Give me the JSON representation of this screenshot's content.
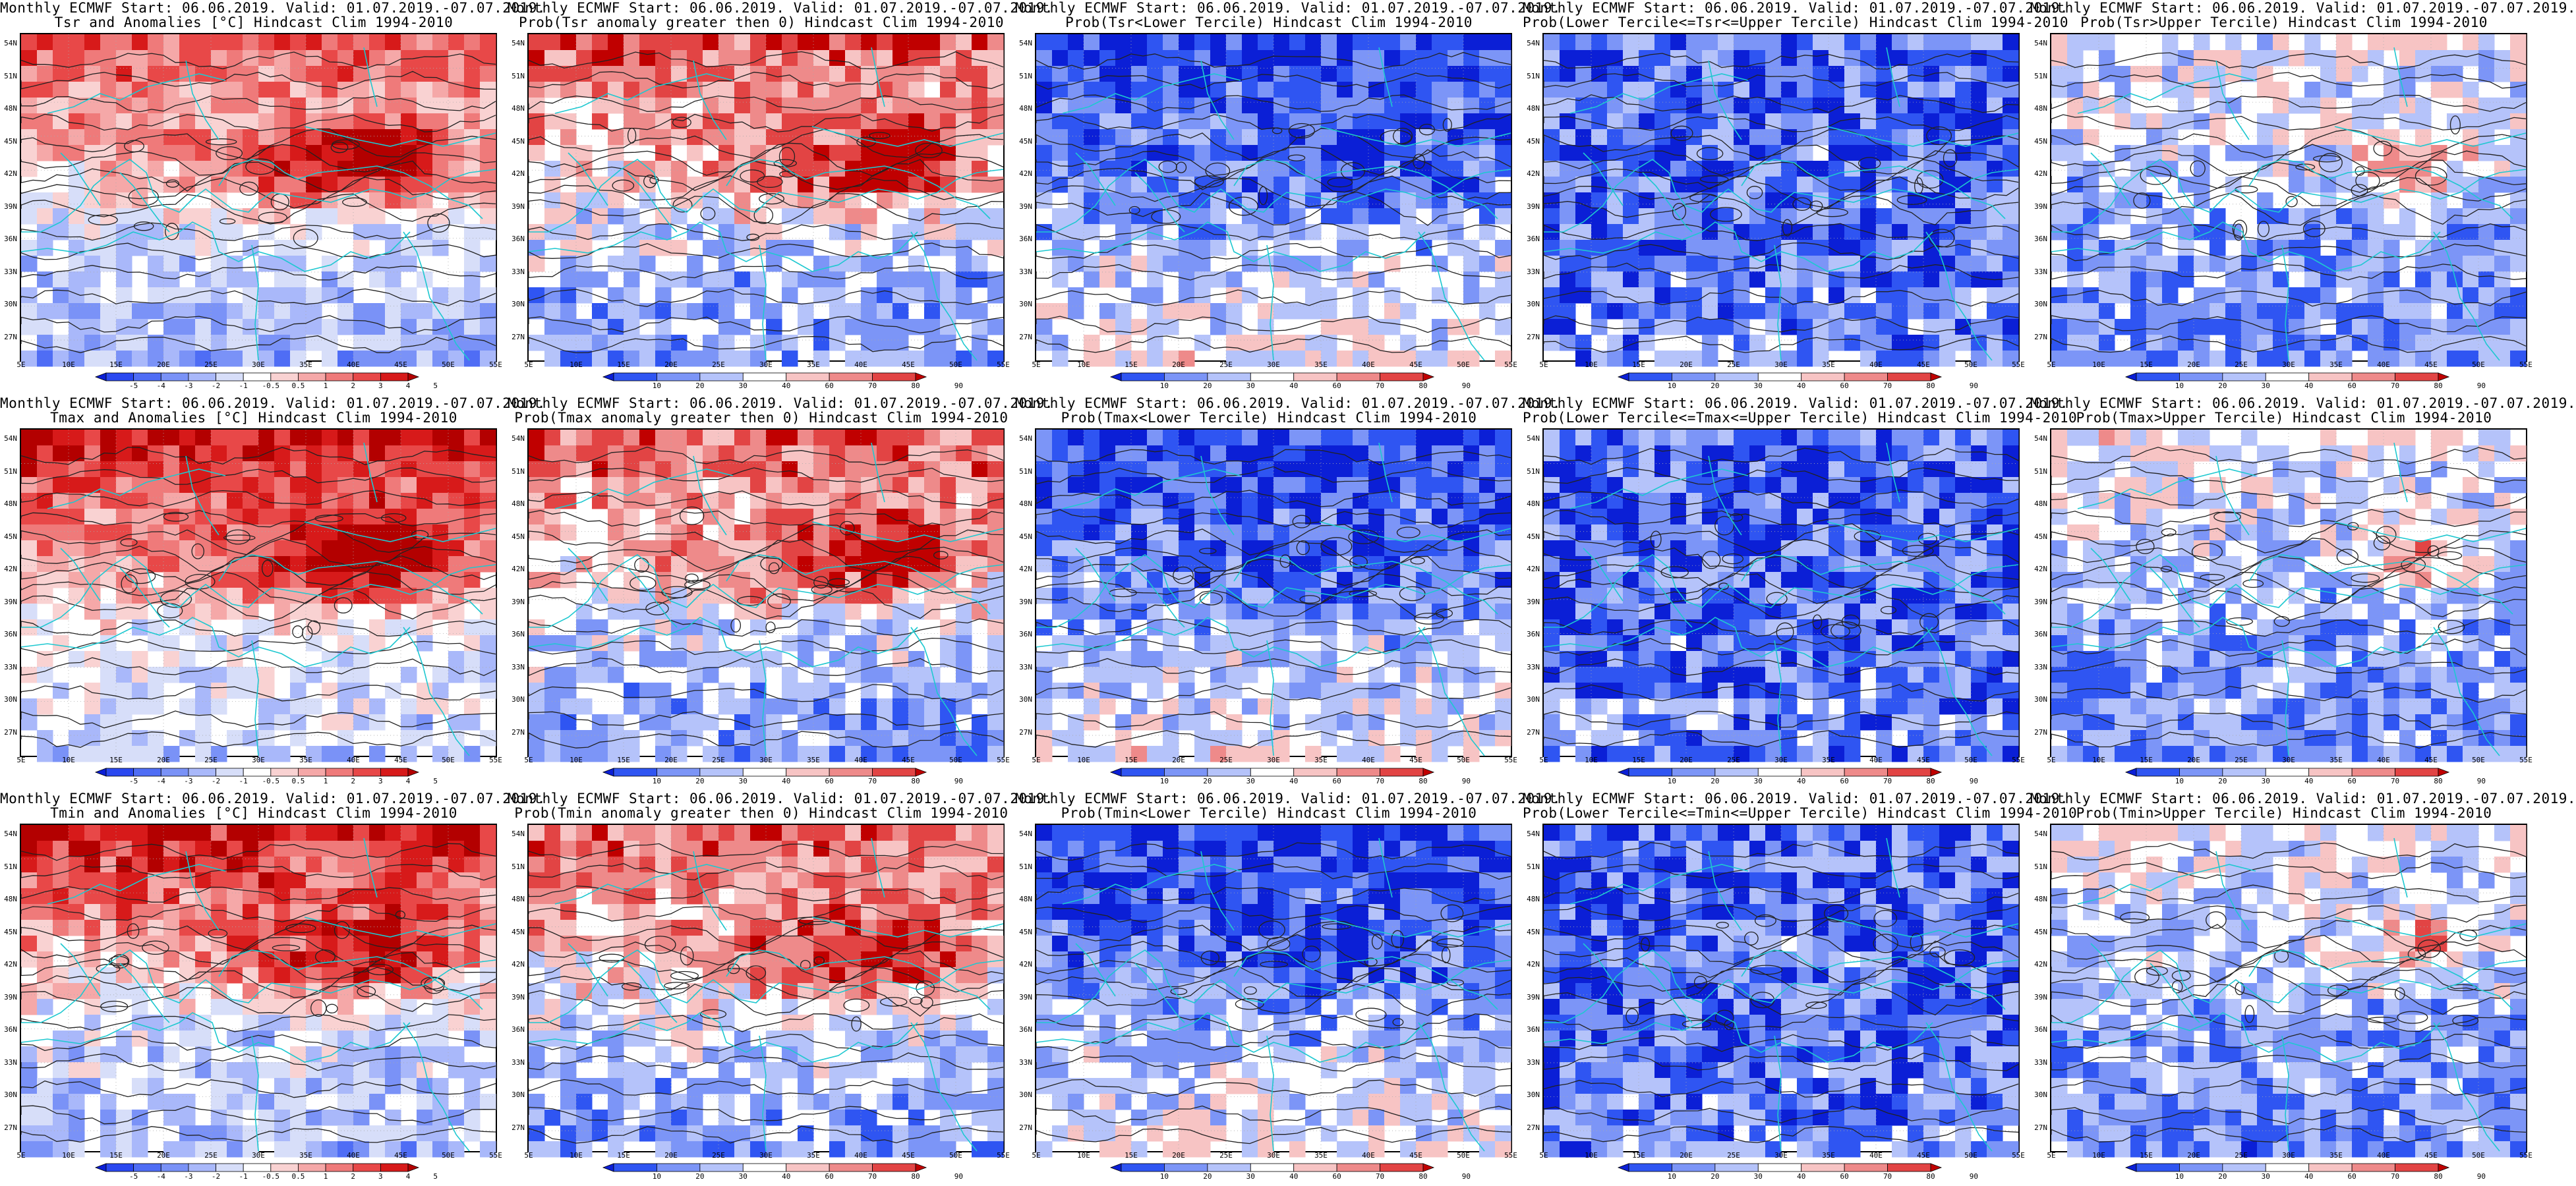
{
  "panels": [
    {
      "line1": "Monthly ECMWF Start: 06.06.2019. Valid: 01.07.2019.-07.07.2019.",
      "line2": "Tsr and Anomalies [°C] Hindcast Clim 1994-2010",
      "scale": "anom",
      "style": "anom-tsr"
    },
    {
      "line1": "Monthly ECMWF Start: 06.06.2019. Valid: 01.07.2019.-07.07.2019.",
      "line2": "Prob(Tsr anomaly greater then 0) Hindcast Clim 1994-2010",
      "scale": "prob",
      "style": "pgt0"
    },
    {
      "line1": "Monthly ECMWF Start: 06.06.2019. Valid: 01.07.2019.-07.07.2019.",
      "line2": "Prob(Tsr<Lower Tercile) Hindcast Clim 1994-2010",
      "scale": "prob",
      "style": "lower"
    },
    {
      "line1": "Monthly ECMWF Start: 06.06.2019. Valid: 01.07.2019.-07.07.2019.",
      "line2": "Prob(Lower Tercile<=Tsr<=Upper Tercile) Hindcast Clim 1994-2010",
      "scale": "prob",
      "style": "mid"
    },
    {
      "line1": "Monthly ECMWF Start: 06.06.2019. Valid: 01.07.2019.-07.07.2019.",
      "line2": "Prob(Tsr>Upper Tercile) Hindcast Clim 1994-2010",
      "scale": "prob",
      "style": "upper"
    },
    {
      "line1": "Monthly ECMWF Start: 06.06.2019. Valid: 01.07.2019.-07.07.2019.",
      "line2": "Tmax and Anomalies [°C] Hindcast Clim 1994-2010",
      "scale": "anom",
      "style": "anom-tmax"
    },
    {
      "line1": "Monthly ECMWF Start: 06.06.2019. Valid: 01.07.2019.-07.07.2019.",
      "line2": "Prob(Tmax anomaly greater then 0) Hindcast Clim 1994-2010",
      "scale": "prob",
      "style": "pgt0"
    },
    {
      "line1": "Monthly ECMWF Start: 06.06.2019. Valid: 01.07.2019.-07.07.2019.",
      "line2": "Prob(Tmax<Lower Tercile) Hindcast Clim 1994-2010",
      "scale": "prob",
      "style": "lower"
    },
    {
      "line1": "Monthly ECMWF Start: 06.06.2019. Valid: 01.07.2019.-07.07.2019.",
      "line2": "Prob(Lower Tercile<=Tmax<=Upper Tercile) Hindcast Clim 1994-2010",
      "scale": "prob",
      "style": "mid"
    },
    {
      "line1": "Monthly ECMWF Start: 06.06.2019. Valid: 01.07.2019.-07.07.2019.",
      "line2": "Prob(Tmax>Upper Tercile) Hindcast Clim 1994-2010",
      "scale": "prob",
      "style": "upper"
    },
    {
      "line1": "Monthly ECMWF Start: 06.06.2019. Valid: 01.07.2019.-07.07.2019.",
      "line2": "Tmin and Anomalies [°C] Hindcast Clim 1994-2010",
      "scale": "anom",
      "style": "anom-tmin"
    },
    {
      "line1": "Monthly ECMWF Start: 06.06.2019. Valid: 01.07.2019.-07.07.2019.",
      "line2": "Prob(Tmin anomaly greater then 0) Hindcast Clim 1994-2010",
      "scale": "prob",
      "style": "pgt0"
    },
    {
      "line1": "Monthly ECMWF Start: 06.06.2019. Valid: 01.07.2019.-07.07.2019.",
      "line2": "Prob(Tmin<Lower Tercile) Hindcast Clim 1994-2010",
      "scale": "prob",
      "style": "lower"
    },
    {
      "line1": "Monthly ECMWF Start: 06.06.2019. Valid: 01.07.2019.-07.07.2019.",
      "line2": "Prob(Lower Tercile<=Tmin<=Upper Tercile) Hindcast Clim 1994-2010",
      "scale": "prob",
      "style": "mid"
    },
    {
      "line1": "Monthly ECMWF Start: 06.06.2019. Valid: 01.07.2019.-07.07.2019.",
      "line2": "Prob(Tmin>Upper Tercile) Hindcast Clim 1994-2010",
      "scale": "prob",
      "style": "upper"
    }
  ],
  "axes": {
    "lat_labels": [
      "54N",
      "51N",
      "48N",
      "45N",
      "42N",
      "39N",
      "36N",
      "33N",
      "30N",
      "27N"
    ],
    "lon_labels": [
      "5E",
      "10E",
      "15E",
      "20E",
      "25E",
      "30E",
      "35E",
      "40E",
      "45E",
      "50E",
      "55E"
    ]
  },
  "scales": {
    "anom": {
      "labels": [
        "-5",
        "-4",
        "-3",
        "-2",
        "-1",
        "-0.5",
        "0.5",
        "1",
        "2",
        "3",
        "4",
        "5"
      ],
      "colors": [
        "#0b1fd6",
        "#2a48f0",
        "#4f6df5",
        "#7a92f7",
        "#a9b8fa",
        "#d7def9",
        "#ffffff",
        "#f9d2d2",
        "#f5a8a8",
        "#ef7a7a",
        "#e84848",
        "#d71a1a",
        "#b30000"
      ]
    },
    "prob": {
      "labels": [
        "10",
        "20",
        "30",
        "40",
        "60",
        "70",
        "80",
        "90"
      ],
      "colors": [
        "#0b1fd6",
        "#2f55f2",
        "#7c95f7",
        "#b5c3fa",
        "#ffffff",
        "#f7c4c4",
        "#ee8a8a",
        "#e24444",
        "#c00000"
      ]
    }
  },
  "colors": {
    "coast": "#1ec8d0",
    "contour": "#222222",
    "grid": "#aaaaaa"
  }
}
